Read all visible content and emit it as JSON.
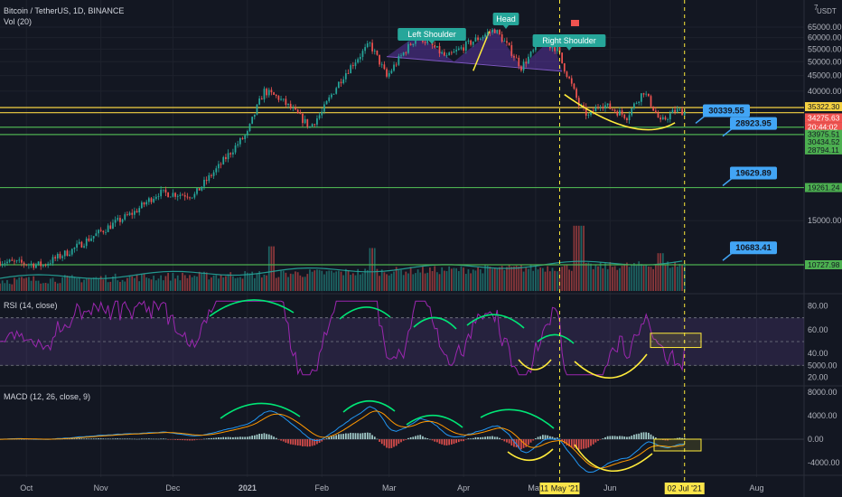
{
  "header": {
    "title": "Bitcoin / TetherUS, 1D, BINANCE",
    "vol": "Vol (20)",
    "rsi": "RSI (14, close)",
    "macd": "MACD (12, 26, close, 9)",
    "currency": "USDT",
    "currency_mark": "7"
  },
  "colors": {
    "background": "#131722",
    "up": "#26a69a",
    "down": "#ef5350",
    "level_line": "#4caf50",
    "resistance_line": "#f5d142",
    "annotation_green": "#00e676",
    "annotation_yellow": "#ffeb3b",
    "callout_blue": "#42a5f5",
    "rsi": "#9c27b0",
    "macd": "#2196f3",
    "signal": "#ff9800"
  },
  "chart_data": [
    {
      "type": "candlestick",
      "title": "Bitcoin / TetherUS, 1D, BINANCE",
      "x_ticks": [
        "Oct",
        "Nov",
        "Dec",
        "2021",
        "Feb",
        "Mar",
        "Apr",
        "May",
        "Jun",
        "Jul",
        "Aug"
      ],
      "price_ticks": [
        65000.0,
        60000.0,
        55000.0,
        50000.0,
        45000.0,
        40000.0,
        15000.0,
        5000.0
      ],
      "y_scale": "log",
      "price_path": [
        [
          "2020-09-20",
          11000
        ],
        [
          "2020-10-08",
          10700
        ],
        [
          "2020-10-20",
          12000
        ],
        [
          "2020-11-01",
          13800
        ],
        [
          "2020-11-15",
          16000
        ],
        [
          "2020-11-25",
          18500
        ],
        [
          "2020-12-10",
          18200
        ],
        [
          "2020-12-20",
          22500
        ],
        [
          "2021-01-01",
          29000
        ],
        [
          "2021-01-08",
          40000
        ],
        [
          "2021-01-14",
          38000
        ],
        [
          "2021-01-27",
          30500
        ],
        [
          "2021-02-01",
          34000
        ],
        [
          "2021-02-10",
          45000
        ],
        [
          "2021-02-21",
          57000
        ],
        [
          "2021-02-28",
          44500
        ],
        [
          "2021-03-13",
          61000
        ],
        [
          "2021-03-25",
          51500
        ],
        [
          "2021-04-05",
          58500
        ],
        [
          "2021-04-14",
          63800
        ],
        [
          "2021-04-25",
          48000
        ],
        [
          "2021-05-03",
          57500
        ],
        [
          "2021-05-10",
          55500
        ],
        [
          "2021-05-12",
          49500
        ],
        [
          "2021-05-19",
          36000
        ],
        [
          "2021-05-23",
          33000
        ],
        [
          "2021-05-28",
          36500
        ],
        [
          "2021-06-08",
          33000
        ],
        [
          "2021-06-15",
          40000
        ],
        [
          "2021-06-22",
          31500
        ],
        [
          "2021-06-28",
          34500
        ],
        [
          "2021-07-02",
          34275
        ]
      ],
      "levels": [
        35322.3,
        33975.51,
        30434.52,
        28794.11,
        19261.24,
        10727.98
      ],
      "price_labels": {
        "current": "34275.63",
        "countdown": "20:44:02",
        "l1": "35322.30",
        "l2": "33975.51",
        "l3": "30434.52",
        "l4": "28794.11",
        "l5": "19261.24",
        "l6": "10727.98"
      },
      "callouts": [
        "30339.55",
        "28923.95",
        "19629.89",
        "10683.41"
      ],
      "annotations": {
        "pattern": "Head and Shoulders",
        "left_shoulder": "Left Shoulder",
        "head": "Head",
        "right_shoulder": "Right Shoulder"
      },
      "date_markers": [
        "11 May '21",
        "02 Jul '21"
      ]
    },
    {
      "type": "bar",
      "title": "Vol (20)",
      "series": [
        {
          "name": "Vol",
          "values_relative": "rising into May 2021 peak"
        }
      ]
    },
    {
      "type": "line",
      "title": "RSI (14, close)",
      "y_ticks": [
        80.0,
        60.0,
        40.0,
        20.0
      ],
      "bands": [
        70,
        30
      ],
      "ylim": [
        15,
        88
      ]
    },
    {
      "type": "line",
      "title": "MACD (12, 26, close, 9)",
      "y_ticks": [
        8000.0,
        4000.0,
        0.0,
        -4000.0
      ],
      "ylim": [
        -5200,
        8600
      ]
    }
  ]
}
